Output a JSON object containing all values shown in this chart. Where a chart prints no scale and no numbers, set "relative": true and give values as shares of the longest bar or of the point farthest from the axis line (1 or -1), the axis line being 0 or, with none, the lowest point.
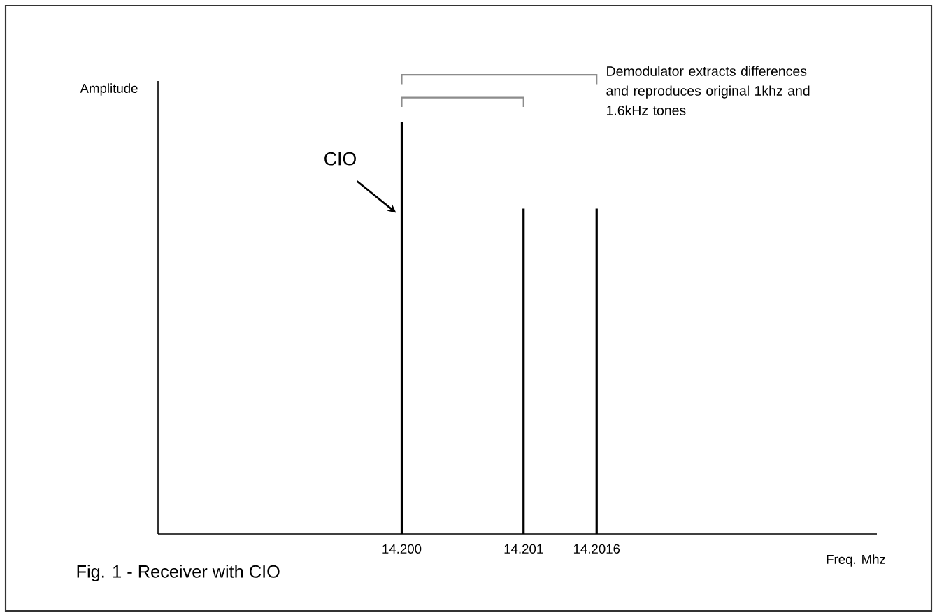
{
  "chart_data": {
    "type": "bar",
    "ylabel": "Amplitude",
    "xlabel": "Freq. Mhz",
    "x": [
      14.2,
      14.201,
      14.2016
    ],
    "values": [
      1,
      0.79,
      0.79
    ],
    "color": "#000000",
    "relative": true,
    "xlim": [
      14.198,
      14.2039
    ],
    "xticks": [
      {
        "value": 14.2,
        "label": "14.200"
      },
      14.201,
      14.2016
    ],
    "annotations": [
      {
        "text": "CIO",
        "x": 14.2,
        "y": 0.78
      },
      "Demodulator extracts differences and reproduces original 1khz and 1.6kHz tones",
      "Fig. 1 - Receiver with CIO"
    ]
  }
}
